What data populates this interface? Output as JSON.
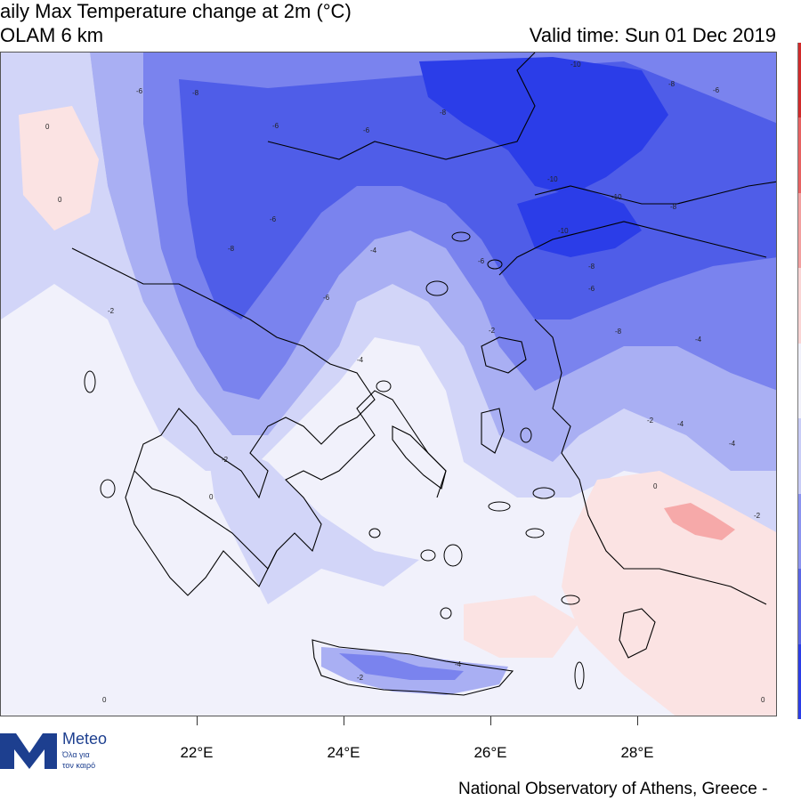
{
  "header": {
    "title_line1": "aily Max Temperature change at 2m (°C)",
    "title_line2": "OLAM 6 km",
    "valid_time": "Valid time: Sun 01 Dec 2019"
  },
  "map": {
    "longitude_labels": [
      "22°E",
      "24°E",
      "26°E",
      "28°E"
    ],
    "contour_labels": [
      "-10",
      "-8",
      "-6",
      "-4",
      "-2",
      "0"
    ],
    "colors": {
      "strong_cold": "#2b3de8",
      "cold": "#4f5de8",
      "medium_cold": "#7a83ee",
      "light_cold": "#a9aff3",
      "very_light_cold": "#d2d5f8",
      "neutral": "#f1f1fb",
      "light_warm": "#fbe3e3",
      "warm": "#f6a9a9",
      "coast": "#000000"
    }
  },
  "logo": {
    "brand": "Meteo",
    "tagline_line1": "Όλα για",
    "tagline_line2": "τον καιρό",
    "icon": "meteo-m-logo-icon"
  },
  "footer": {
    "credit": "National Observatory of Athens, Greece -"
  },
  "colorbar": {
    "colors": [
      "#d22a2a",
      "#e86262",
      "#f3a0a0",
      "#fbd5d5",
      "#f1f1fb",
      "#c9cdf7",
      "#8c94f0",
      "#5a66e6",
      "#2b3de8"
    ]
  }
}
